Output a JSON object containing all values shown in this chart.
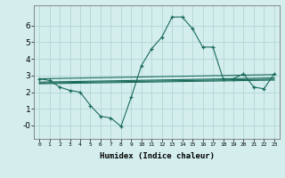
{
  "xlabel": "Humidex (Indice chaleur)",
  "bg_color": "#d4eeee",
  "grid_color": "#b8d8d8",
  "line_color": "#1a6b5a",
  "x_ticks": [
    0,
    1,
    2,
    3,
    4,
    5,
    6,
    7,
    8,
    9,
    10,
    11,
    12,
    13,
    14,
    15,
    16,
    17,
    18,
    19,
    20,
    21,
    22,
    23
  ],
  "y_ticks": [
    -0.0,
    1,
    2,
    3,
    4,
    5,
    6
  ],
  "y_tick_labels": [
    "-0",
    "1",
    "2",
    "3",
    "4",
    "5",
    "6"
  ],
  "ylim": [
    -0.8,
    7.2
  ],
  "xlim": [
    -0.5,
    23.5
  ],
  "line1_x": [
    0,
    1,
    2,
    3,
    4,
    5,
    6,
    7,
    8,
    9,
    10,
    11,
    12,
    13,
    14,
    15,
    16,
    17,
    18,
    19,
    20,
    21,
    22,
    23
  ],
  "line1_y": [
    2.8,
    2.7,
    2.3,
    2.1,
    2.0,
    1.2,
    0.55,
    0.45,
    -0.05,
    1.7,
    3.6,
    4.6,
    5.3,
    6.5,
    6.5,
    5.8,
    4.7,
    4.7,
    2.8,
    2.8,
    3.1,
    2.3,
    2.2,
    3.1
  ],
  "line2_y_start": 2.8,
  "line2_y_end": 3.05,
  "line3_y_start": 2.6,
  "line3_y_end": 2.85,
  "line4_y_start": 2.55,
  "line4_y_end": 2.78,
  "line5_y_start": 2.5,
  "line5_y_end": 2.72
}
